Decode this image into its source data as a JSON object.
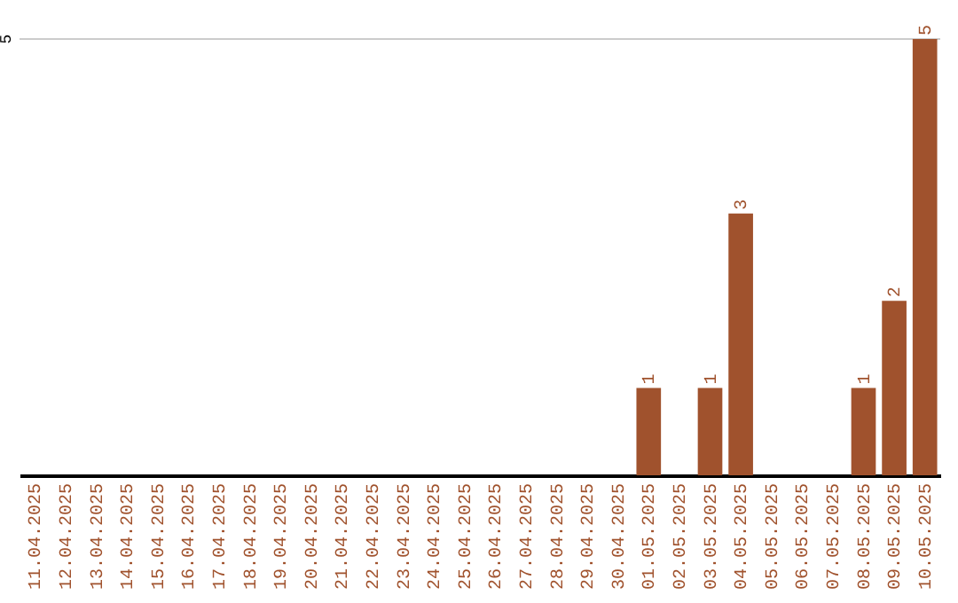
{
  "chart_data": {
    "type": "bar",
    "categories": [
      "11.04.2025",
      "12.04.2025",
      "13.04.2025",
      "14.04.2025",
      "15.04.2025",
      "16.04.2025",
      "17.04.2025",
      "18.04.2025",
      "19.04.2025",
      "20.04.2025",
      "21.04.2025",
      "22.04.2025",
      "23.04.2025",
      "24.04.2025",
      "25.04.2025",
      "26.04.2025",
      "27.04.2025",
      "28.04.2025",
      "29.04.2025",
      "30.04.2025",
      "01.05.2025",
      "02.05.2025",
      "03.05.2025",
      "04.05.2025",
      "05.05.2025",
      "06.05.2025",
      "07.05.2025",
      "08.05.2025",
      "09.05.2025",
      "10.05.2025"
    ],
    "values": [
      null,
      null,
      null,
      null,
      null,
      null,
      null,
      null,
      null,
      null,
      null,
      null,
      null,
      null,
      null,
      null,
      null,
      null,
      null,
      null,
      1,
      null,
      1,
      3,
      null,
      null,
      null,
      1,
      2,
      5
    ],
    "data_labels": true,
    "color": "#a0522d",
    "ref_lines": [
      {
        "axis": "y",
        "value": 5,
        "label": "5",
        "color": "#cccccc"
      }
    ]
  }
}
